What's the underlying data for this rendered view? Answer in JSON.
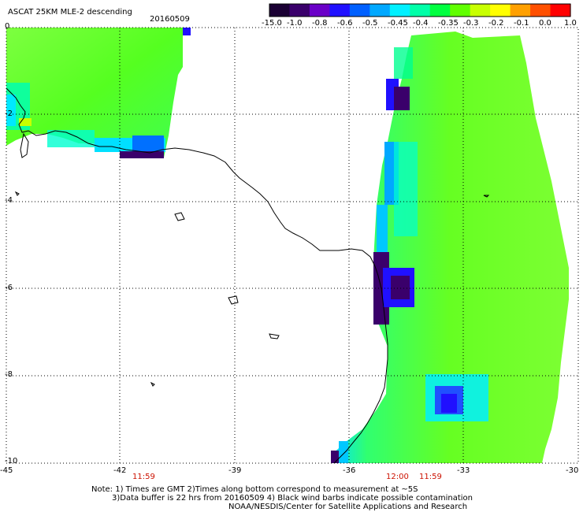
{
  "header": {
    "product": "ASCAT 25KM MLE-2 descending",
    "date": "20160509"
  },
  "colorbar": {
    "labels": [
      "-15.0",
      "-1.0",
      "-0.8",
      "-0.6",
      "-0.5",
      "-0.45",
      "-0.4",
      "-0.35",
      "-0.3",
      "-0.2",
      "-0.1",
      "0.0",
      "1.0"
    ],
    "colors": [
      "#1a0033",
      "#3a006b",
      "#6a00c8",
      "#2010ff",
      "#0060ff",
      "#00a8ff",
      "#00f0ff",
      "#00ffa8",
      "#00ff40",
      "#60ff00",
      "#c8ff00",
      "#ffff00",
      "#ffa000",
      "#ff5000",
      "#ff0000"
    ]
  },
  "axes": {
    "x_ticks": [
      "-45",
      "-42",
      "-39",
      "-36",
      "-33",
      "-30"
    ],
    "y_ticks": [
      "0",
      "-2",
      "-4",
      "-6",
      "-8",
      "-10"
    ]
  },
  "pass_times": [
    {
      "label": "11:59"
    },
    {
      "label": "12:00"
    },
    {
      "label": "11:59"
    }
  ],
  "notes": {
    "line1": "Note: 1) Times are GMT 2)Times along bottom correspond to measurement at ~5S",
    "line2": "3)Data buffer is 22 hrs from 20160509 4) Black wind barbs indicate possible contamination",
    "line3": "NOAA/NESDIS/Center for Satellite Applications and Research"
  }
}
